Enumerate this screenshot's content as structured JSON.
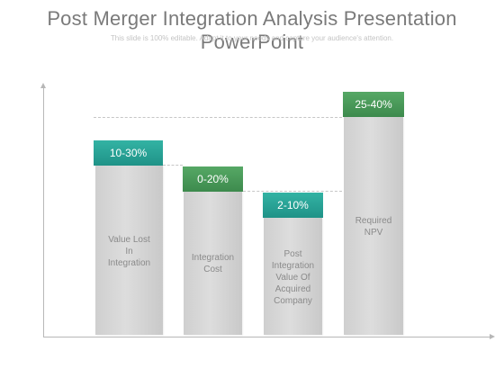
{
  "slide": {
    "title": "Post Merger Integration Analysis Presentation PowerPoint",
    "subtitle": "This slide is 100% editable. Adapt it to your needs and capture your audience's attention."
  },
  "bars": [
    {
      "cap": "10-30%",
      "label": "Value Lost\nIn\nIntegration"
    },
    {
      "cap": "0-20%",
      "label": "Integration\nCost"
    },
    {
      "cap": "2-10%",
      "label": "Post\nIntegration\nValue Of\nAcquired\nCompany"
    },
    {
      "cap": "25-40%",
      "label": "Required\nNPV"
    }
  ],
  "colors": {
    "teal": "#25a092",
    "green": "#4a9a59",
    "bar_gray": "#d4d4d4",
    "title_gray": "#7a7a7a"
  }
}
